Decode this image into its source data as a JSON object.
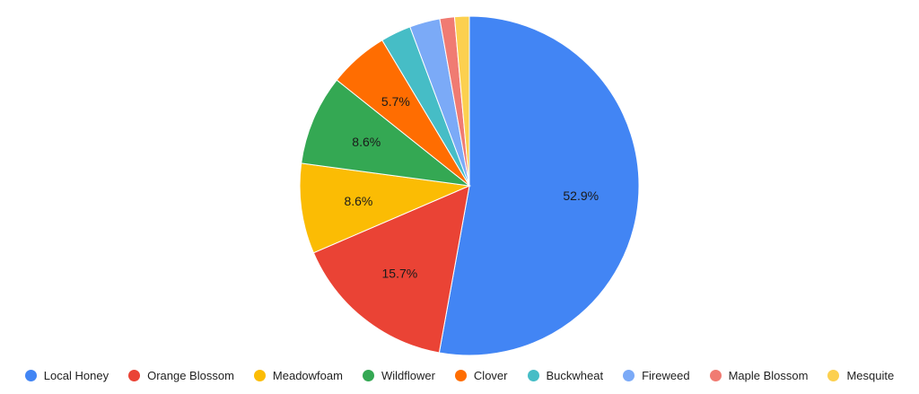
{
  "chart_data": {
    "type": "pie",
    "title": "",
    "legend_position": "bottom",
    "start_angle_deg": 0,
    "direction": "clockwise",
    "slices": [
      {
        "label": "Local Honey",
        "value": 52.9,
        "color": "#4285F4",
        "value_label": "52.9%"
      },
      {
        "label": "Orange Blossom",
        "value": 15.7,
        "color": "#EA4335",
        "value_label": "15.7%"
      },
      {
        "label": "Meadowfoam",
        "value": 8.6,
        "color": "#FBBC04",
        "value_label": "8.6%"
      },
      {
        "label": "Wildflower",
        "value": 8.6,
        "color": "#34A853",
        "value_label": "8.6%"
      },
      {
        "label": "Clover",
        "value": 5.7,
        "color": "#FF6D01",
        "value_label": "5.7%"
      },
      {
        "label": "Buckwheat",
        "value": 2.9,
        "color": "#46BDC6",
        "value_label": ""
      },
      {
        "label": "Fireweed",
        "value": 2.9,
        "color": "#7BAAF7",
        "value_label": ""
      },
      {
        "label": "Maple Blossom",
        "value": 1.4,
        "color": "#F07B72",
        "value_label": ""
      },
      {
        "label": "Mesquite",
        "value": 1.4,
        "color": "#FCD04F",
        "value_label": ""
      }
    ]
  }
}
